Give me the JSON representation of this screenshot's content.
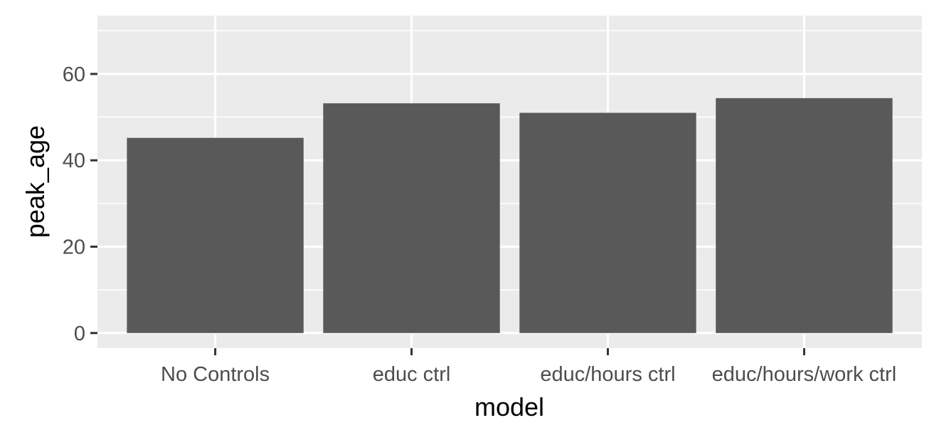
{
  "chart_data": {
    "type": "bar",
    "categories": [
      "No Controls",
      "educ ctrl",
      "educ/hours ctrl",
      "educ/hours/work ctrl"
    ],
    "values": [
      45.2,
      53.2,
      51.0,
      54.4
    ],
    "xlabel": "model",
    "ylabel": "peak_age",
    "ylim": [
      -3.5,
      73.5
    ],
    "yticks": [
      0,
      20,
      40,
      60
    ],
    "grid": true,
    "colors": {
      "bar": "#595959",
      "panel": "#ebebeb",
      "grid": "#ffffff",
      "tick": "#333333",
      "tick_label": "#4d4d4d"
    }
  }
}
